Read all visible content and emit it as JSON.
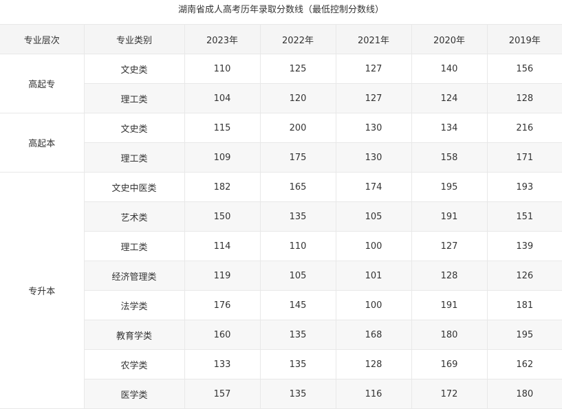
{
  "title": "湖南省成人高考历年录取分数线（最低控制分数线）",
  "headers": [
    "专业层次",
    "专业类别",
    "2023年",
    "2022年",
    "2021年",
    "2020年",
    "2019年"
  ],
  "groups": [
    {
      "level": "高起专",
      "rows": [
        {
          "category": "文史类",
          "scores": [
            "110",
            "125",
            "127",
            "140",
            "156"
          ]
        },
        {
          "category": "理工类",
          "scores": [
            "104",
            "120",
            "127",
            "124",
            "128"
          ]
        }
      ]
    },
    {
      "level": "高起本",
      "rows": [
        {
          "category": "文史类",
          "scores": [
            "115",
            "200",
            "130",
            "134",
            "216"
          ]
        },
        {
          "category": "理工类",
          "scores": [
            "109",
            "175",
            "130",
            "158",
            "171"
          ]
        }
      ]
    },
    {
      "level": "专升本",
      "rows": [
        {
          "category": "文史中医类",
          "scores": [
            "182",
            "165",
            "174",
            "195",
            "193"
          ]
        },
        {
          "category": "艺术类",
          "scores": [
            "150",
            "135",
            "105",
            "191",
            "151"
          ]
        },
        {
          "category": "理工类",
          "scores": [
            "114",
            "110",
            "100",
            "127",
            "139"
          ]
        },
        {
          "category": "经济管理类",
          "scores": [
            "119",
            "105",
            "101",
            "128",
            "126"
          ]
        },
        {
          "category": "法学类",
          "scores": [
            "176",
            "145",
            "100",
            "191",
            "181"
          ]
        },
        {
          "category": "教育学类",
          "scores": [
            "160",
            "135",
            "168",
            "180",
            "195"
          ]
        },
        {
          "category": "农学类",
          "scores": [
            "133",
            "135",
            "128",
            "169",
            "162"
          ]
        },
        {
          "category": "医学类",
          "scores": [
            "157",
            "135",
            "116",
            "172",
            "180"
          ]
        }
      ]
    }
  ]
}
